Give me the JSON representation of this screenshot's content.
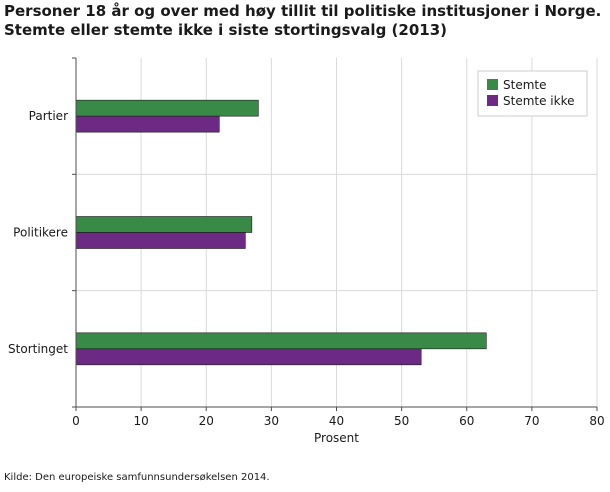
{
  "title_line1": "Personer 18 år og over med høy tillit til politiske institusjoner i Norge.",
  "title_line2": "Stemte eller stemte ikke i siste stortingsvalg (2013)",
  "source": "Kilde: Den europeiske samfunnsundersøkelsen 2014.",
  "chart_data": {
    "type": "bar",
    "orientation": "horizontal",
    "categories": [
      "Partier",
      "Politikere",
      "Stortinget"
    ],
    "series": [
      {
        "name": "Stemte",
        "values": [
          28,
          27,
          63
        ],
        "color": "#3a8a47"
      },
      {
        "name": "Stemte ikke",
        "values": [
          22,
          26,
          53
        ],
        "color": "#6c2a85"
      }
    ],
    "xlabel": "Prosent",
    "ylabel": "",
    "xlim": [
      0,
      80
    ],
    "xticks": [
      0,
      10,
      20,
      30,
      40,
      50,
      60,
      70,
      80
    ],
    "grid": true,
    "legend_position": "top-right"
  }
}
